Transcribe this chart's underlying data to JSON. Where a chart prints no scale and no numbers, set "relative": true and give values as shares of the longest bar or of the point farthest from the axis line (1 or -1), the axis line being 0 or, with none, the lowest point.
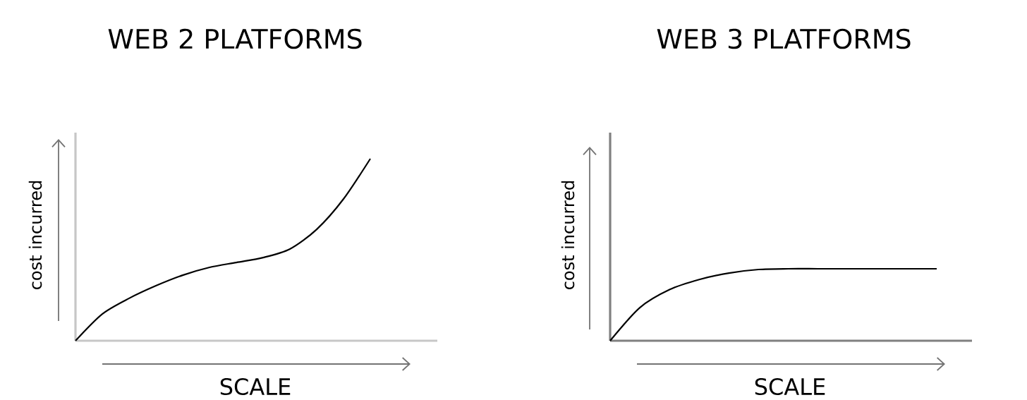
{
  "chart_data": [
    {
      "type": "line",
      "title": "WEB 2 PLATFORMS",
      "xlabel": "SCALE",
      "ylabel": "cost incurred",
      "relative": true,
      "color": "#000000",
      "categories": [
        null,
        null,
        null,
        null,
        null,
        null,
        null,
        null,
        null,
        null,
        null,
        null
      ],
      "values": [
        0,
        0.147,
        0.233,
        0.302,
        0.36,
        0.403,
        0.43,
        0.457,
        0.504,
        0.612,
        0.779,
        1.0
      ]
    },
    {
      "type": "line",
      "title": "WEB 3 PLATFORMS",
      "xlabel": "SCALE",
      "ylabel": "cost incurred",
      "relative": true,
      "color": "#000000",
      "categories": [
        null,
        null,
        null,
        null,
        null,
        null,
        null,
        null,
        null,
        null,
        null,
        null
      ],
      "values": [
        0,
        0.46,
        0.71,
        0.85,
        0.94,
        0.99,
        1.0,
        1.0,
        1.0,
        1.0,
        1.0,
        1.0
      ]
    }
  ]
}
